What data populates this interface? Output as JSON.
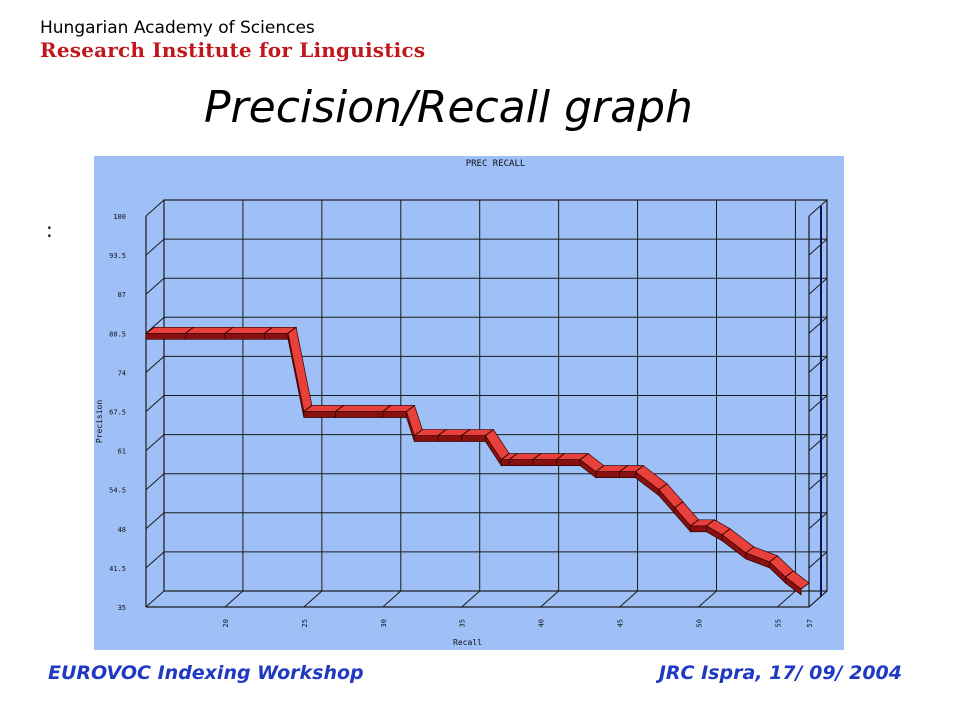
{
  "header": {
    "institution_line1": "Hungarian Academy of Sciences",
    "institution_line2": "Research Institute for Linguistics"
  },
  "slide": {
    "title": "Precision/Recall graph",
    "stray_mark": ":"
  },
  "footer": {
    "left": "EUROVOC Indexing Workshop",
    "right": "JRC Ispra, 17/ 09/ 2004"
  },
  "colors": {
    "chart_background": "#9fc0f6",
    "grid": "#1a1a1a",
    "ribbon_top": "#e8403a",
    "ribbon_side": "#8a1010",
    "footer_text": "#1f39c2",
    "logo_red": "#c0171c"
  },
  "chart_data": {
    "type": "line",
    "title": "PREC RECALL",
    "xlabel": "Recall",
    "ylabel": "Precision",
    "xlim": [
      15,
      57
    ],
    "ylim": [
      35,
      100
    ],
    "xticks": [
      20,
      25,
      30,
      35,
      40,
      45,
      50,
      55,
      57
    ],
    "yticks": [
      35,
      41.5,
      48,
      54.5,
      61,
      67.5,
      74,
      80.5,
      87,
      93.5,
      100
    ],
    "grid": true,
    "style": "3d-ribbon",
    "series": [
      {
        "x": [
          15,
          17.5,
          20,
          22.5,
          24,
          25,
          27,
          30,
          31.5,
          32,
          33.5,
          35,
          36.5,
          37.5,
          38,
          39.5,
          41,
          42.5,
          43.5,
          45,
          46,
          47.5,
          48.5,
          49.5,
          50.5,
          51.5,
          53,
          54.5,
          55.5,
          56.5
        ],
        "y": [
          80.5,
          80.5,
          80.5,
          80.5,
          80.5,
          67.5,
          67.5,
          67.5,
          67.5,
          63.5,
          63.5,
          63.5,
          63.5,
          59.5,
          59.5,
          59.5,
          59.5,
          59.5,
          57.5,
          57.5,
          57.5,
          54.5,
          51.5,
          48.5,
          48.5,
          47,
          44,
          42.5,
          40,
          38
        ]
      }
    ]
  }
}
